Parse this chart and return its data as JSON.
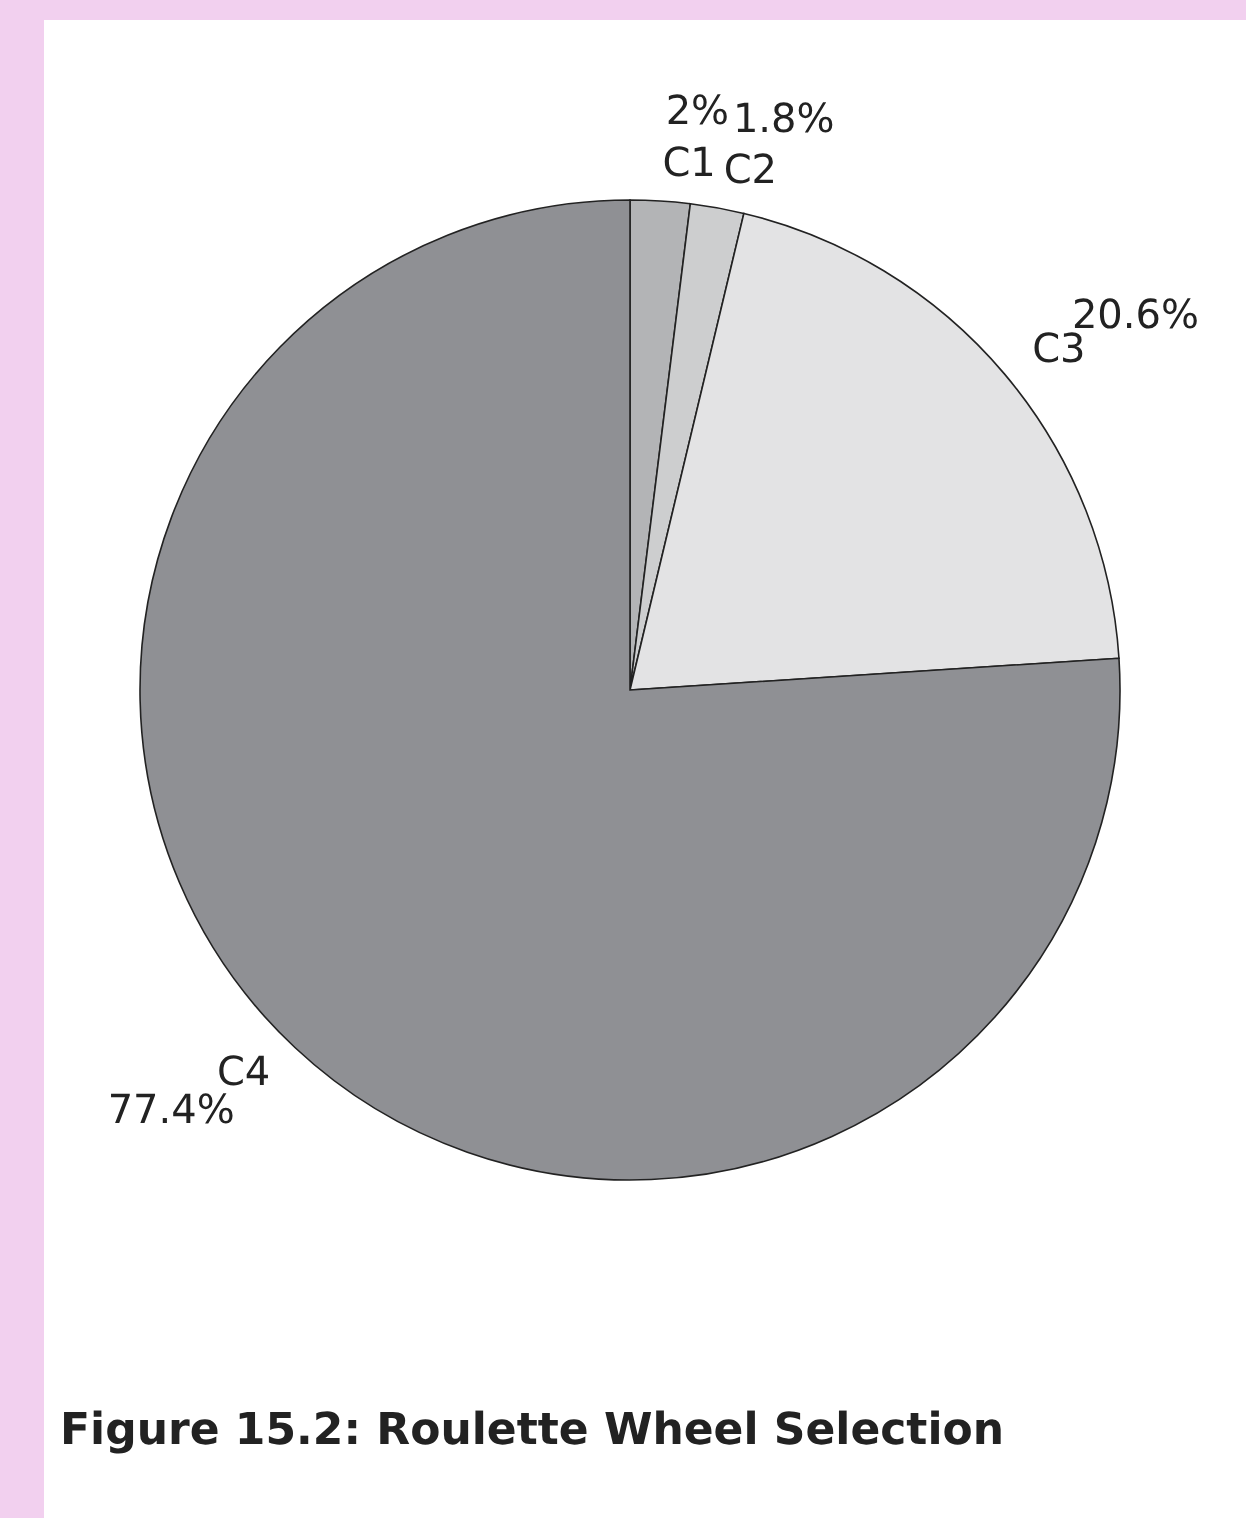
{
  "chart_data": {
    "type": "pie",
    "title": "Figure 15.2: Roulette Wheel Selection",
    "categories": [
      "C1",
      "C2",
      "C3",
      "C4"
    ],
    "values": [
      2,
      1.8,
      20.6,
      77.4
    ],
    "colors": [
      "#b3b4b6",
      "#cdcecf",
      "#e3e3e4",
      "#8f9094"
    ],
    "value_labels": [
      "2%",
      "1.8%",
      "20.6%",
      "77.4%"
    ]
  }
}
